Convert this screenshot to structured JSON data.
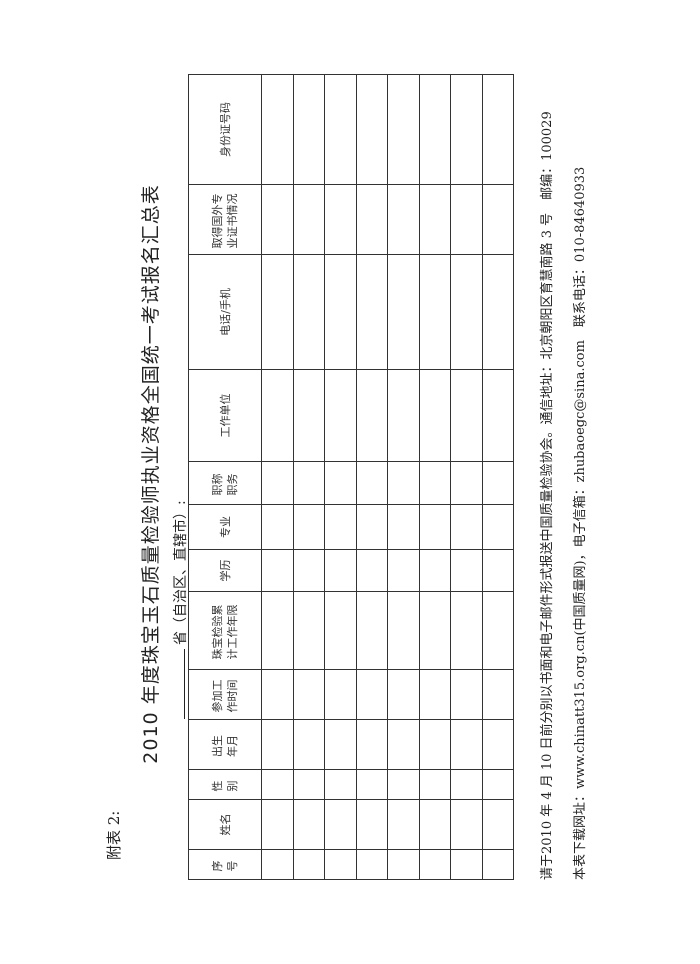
{
  "attachment_label": "附表 2:",
  "title": "2010 年度珠宝玉石质量检验师执业资格全国统一考试报名汇总表",
  "province_label": "省（自治区、直辖市）:",
  "table": {
    "headers": [
      "序号",
      "姓名",
      "性别",
      "出生年月",
      "参加工作时间",
      "珠宝检验累计工作年限",
      "学历",
      "专业",
      "职称职务",
      "工作单位",
      "电话/手机",
      "取得国外专业证书情况",
      "身份证号码"
    ],
    "header_lines": [
      [
        "序",
        "号"
      ],
      [
        "姓名"
      ],
      [
        "性",
        "别"
      ],
      [
        "出生",
        "年月"
      ],
      [
        "参加工",
        "作时间"
      ],
      [
        "珠宝检验累",
        "计工作年限"
      ],
      [
        "学历"
      ],
      [
        "专业"
      ],
      [
        "职称",
        "职务"
      ],
      [
        "工作单位"
      ],
      [
        "电话/手机"
      ],
      [
        "取得国外专",
        "业证书情况"
      ],
      [
        "身份证号码"
      ]
    ],
    "row_count": 8
  },
  "footer": {
    "line1": "请于2010 年 4 月 10 日前分别以书面和电子邮件形式报送中国质量检验协会。通信地址：北京朝阳区育慧南路 3 号　邮编：100029",
    "line2": "本表下载网址：www.chinatt315.org.cn(中国质量网)，电子信箱：zhubaoegc@sina.com　联系电话：010-84640933"
  }
}
